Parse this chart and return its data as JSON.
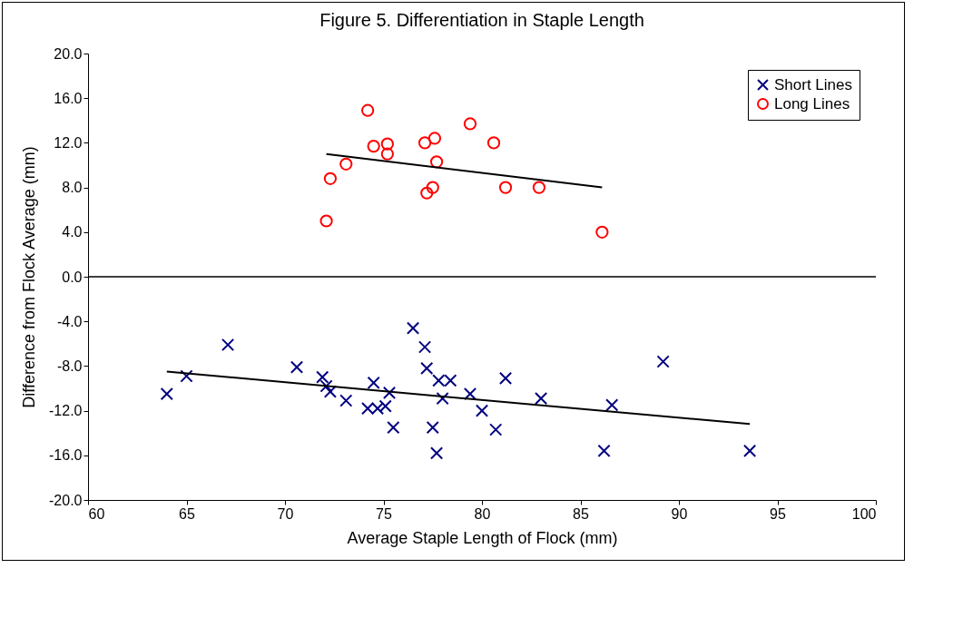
{
  "chart_data": {
    "type": "scatter",
    "title": "Figure 5. Differentiation in Staple Length",
    "xlabel": "Average Staple Length of Flock (mm)",
    "ylabel": "Difference from Flock Average (mm)",
    "xlim": [
      60,
      100
    ],
    "xticks": [
      60,
      65,
      70,
      75,
      80,
      85,
      90,
      95,
      100
    ],
    "ylim": [
      -20,
      20
    ],
    "yticks": [
      {
        "value": -20,
        "label": "-20.0"
      },
      {
        "value": -16,
        "label": "-16.0"
      },
      {
        "value": -12,
        "label": "-12.0"
      },
      {
        "value": -8,
        "label": "-8.0"
      },
      {
        "value": -4,
        "label": "-4.0"
      },
      {
        "value": 0,
        "label": "0.0"
      },
      {
        "value": 4,
        "label": "4.0"
      },
      {
        "value": 8,
        "label": "8.0"
      },
      {
        "value": 12,
        "label": "12.0"
      },
      {
        "value": 16,
        "label": "16.0"
      },
      {
        "value": 20,
        "label": "20.0"
      }
    ],
    "grid": false,
    "legend": "top right",
    "ref_lines": [
      {
        "axis": "y",
        "value": 0,
        "color": "#000000"
      }
    ],
    "series": [
      {
        "name": "Short Lines",
        "color": "#000080",
        "marker": "cross",
        "x": [
          64.0,
          65.0,
          67.1,
          70.6,
          71.9,
          72.1,
          72.3,
          73.1,
          74.2,
          74.5,
          74.7,
          75.1,
          75.3,
          75.5,
          76.5,
          77.1,
          77.2,
          77.5,
          77.7,
          77.8,
          78.0,
          78.4,
          79.4,
          80.0,
          80.7,
          81.2,
          83.0,
          86.2,
          86.6,
          89.2,
          93.6
        ],
        "values": [
          -10.5,
          -8.9,
          -6.1,
          -8.1,
          -9.0,
          -9.8,
          -10.3,
          -11.1,
          -11.8,
          -9.5,
          -11.8,
          -11.6,
          -10.4,
          -13.5,
          -4.6,
          -6.3,
          -8.2,
          -13.5,
          -15.8,
          -9.3,
          -10.9,
          -9.3,
          -10.5,
          -12.0,
          -13.7,
          -9.1,
          -10.9,
          -15.6,
          -11.5,
          -7.6,
          -15.6
        ]
      },
      {
        "name": "Long Lines",
        "color": "#ff0000",
        "marker": "circle",
        "x": [
          72.1,
          72.3,
          73.1,
          74.2,
          74.5,
          75.2,
          75.2,
          77.1,
          77.2,
          77.5,
          77.6,
          77.7,
          79.4,
          80.6,
          81.2,
          82.9,
          86.1
        ],
        "values": [
          5.0,
          8.8,
          10.1,
          14.9,
          11.7,
          11.0,
          11.9,
          12.0,
          7.5,
          8.0,
          12.4,
          10.3,
          13.7,
          12.0,
          8.0,
          8.0,
          4.0
        ]
      },
      {
        "type": "line",
        "color": "#000000",
        "x": [
          64.0,
          93.6
        ],
        "values": [
          -8.5,
          -13.2
        ]
      },
      {
        "type": "line",
        "color": "#000000",
        "x": [
          72.1,
          86.1
        ],
        "values": [
          11.0,
          8.0
        ]
      }
    ]
  }
}
